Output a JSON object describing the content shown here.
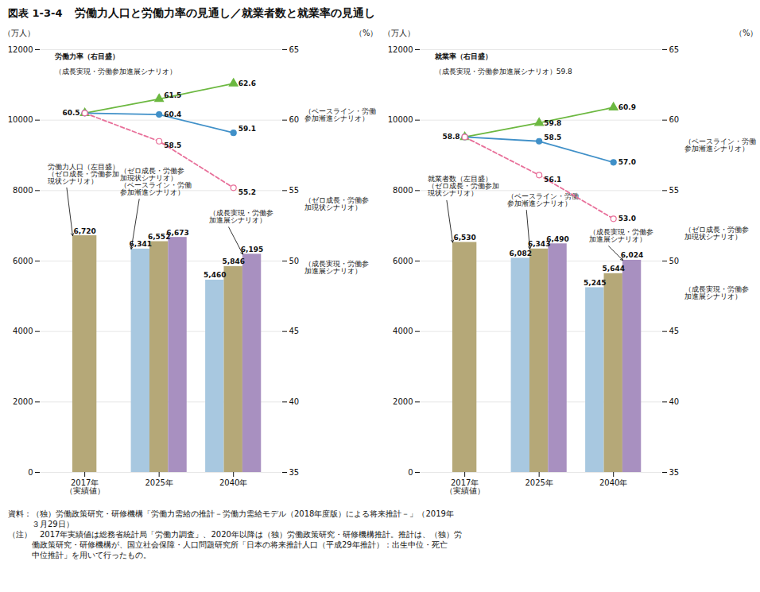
{
  "title": "図表 1-3-4",
  "subtitle": "労働力人口と労働力率の見通し／就業者数と就業率の見通し",
  "caption": [
    "資料：（独）労働政策研究・研修機構「労働力需給の推計－労働力需給モデル（2018年度版）による将来推計－」（2019年",
    "　　　３月29日）",
    "（注）　2017年実績値は総務省統計局「労働力調査」、2020年以降は（独）労働政策研究・研修機構推計。推計は、（独）労",
    "　　　働政策研究・研修機構が、国立社会保障・人口問題研究所「日本の将来推計人口（平成29年推計）：出生中位・死亡",
    "　　　中位推計」を用いて行ったもの。"
  ],
  "chart_data": [
    {
      "type": "bar",
      "categories": [
        "2017年\n（実績値）",
        "2025年",
        "2040年"
      ],
      "ylabel": "（万人）",
      "y2label": "（%）",
      "ylim": [
        0,
        12000
      ],
      "yticks": [
        0,
        2000,
        4000,
        6000,
        8000,
        10000,
        12000
      ],
      "y2lim": [
        35,
        65
      ],
      "y2ticks": [
        35,
        40,
        45,
        50,
        55,
        60,
        65
      ],
      "grid": true,
      "data_labels": true,
      "series": [
        {
          "type": "bar",
          "color": "#a8c8e0",
          "values": [
            null,
            6341,
            5460
          ],
          "value_labels": [
            null,
            "6,341",
            "5,460"
          ]
        },
        {
          "type": "bar",
          "color": "#b5a878",
          "values": [
            6720,
            6552,
            5846
          ],
          "value_labels": [
            "6,720",
            "6,552",
            "5,846"
          ]
        },
        {
          "type": "bar",
          "color": "#a890c0",
          "values": [
            null,
            6673,
            6195
          ],
          "value_labels": [
            null,
            "6,673",
            "6,195"
          ]
        },
        {
          "type": "line",
          "axis": "y2",
          "color": "#6cb840",
          "marker": "triangle",
          "line_style": "solid",
          "values": [
            60.5,
            61.5,
            62.6
          ],
          "value_labels": [
            "60.5",
            "61.5",
            "62.6"
          ]
        },
        {
          "type": "line",
          "axis": "y2",
          "color": "#4090c8",
          "marker": "circle",
          "line_style": "solid",
          "values": [
            60.5,
            60.4,
            59.1
          ],
          "value_labels": [
            null,
            "60.4",
            "59.1"
          ]
        },
        {
          "type": "line",
          "axis": "y2",
          "color": "#e8709a",
          "marker": "hollow_circle",
          "line_style": "dashed",
          "values": [
            60.5,
            58.5,
            55.2
          ],
          "value_labels": [
            null,
            "58.5",
            "55.2"
          ]
        }
      ],
      "annotations": [
        "労働力率（右目盛）",
        "（成長実現・労働参加進展シナリオ）",
        "労働力人口（左目盛）\n（ゼロ成長・労働参加\n現状シナリオ）",
        "（ゼロ成長・労働参\n加現状シナリオ）\n（ベースライン・労働\n参加漸進シナリオ）",
        "（成長実現・労働参\n加進展シナリオ）",
        "（ベースライン・労働\n参加漸進シナリオ）",
        "（ゼロ成長・労働参\n加現状シナリオ）",
        "（成長実現・労働参\n加進展シナリオ）"
      ]
    },
    {
      "type": "bar",
      "categories": [
        "2017年\n（実績値）",
        "2025年",
        "2040年"
      ],
      "ylabel": "（万人）",
      "y2label": "（%）",
      "ylim": [
        0,
        12000
      ],
      "yticks": [
        0,
        2000,
        4000,
        6000,
        8000,
        10000,
        12000
      ],
      "y2lim": [
        35,
        65
      ],
      "y2ticks": [
        35,
        40,
        45,
        50,
        55,
        60,
        65
      ],
      "grid": true,
      "data_labels": true,
      "series": [
        {
          "type": "bar",
          "color": "#a8c8e0",
          "values": [
            null,
            6082,
            5245
          ],
          "value_labels": [
            null,
            "6,082",
            "5,245"
          ]
        },
        {
          "type": "bar",
          "color": "#b5a878",
          "values": [
            6530,
            6343,
            5644
          ],
          "value_labels": [
            "6,530",
            "6,343",
            "5,644"
          ]
        },
        {
          "type": "bar",
          "color": "#a890c0",
          "values": [
            null,
            6490,
            6024
          ],
          "value_labels": [
            null,
            "6,490",
            "6,024"
          ]
        },
        {
          "type": "line",
          "axis": "y2",
          "color": "#6cb840",
          "marker": "triangle",
          "line_style": "solid",
          "values": [
            58.8,
            59.8,
            60.9
          ],
          "value_labels": [
            "58.8",
            "59.8",
            "60.9"
          ]
        },
        {
          "type": "line",
          "axis": "y2",
          "color": "#4090c8",
          "marker": "circle",
          "line_style": "solid",
          "values": [
            58.8,
            58.5,
            57.0
          ],
          "value_labels": [
            null,
            "58.5",
            "57.0"
          ]
        },
        {
          "type": "line",
          "axis": "y2",
          "color": "#e8709a",
          "marker": "hollow_circle",
          "line_style": "dashed",
          "values": [
            58.8,
            56.1,
            53.0
          ],
          "value_labels": [
            null,
            "56.1",
            "53.0"
          ]
        }
      ],
      "annotations": [
        "就業率（右目盛）",
        "（成長実現・労働参加進展シナリオ）59.8",
        "就業者数（左目盛）\n（ゼロ成長・労働参加\n現状シナリオ）",
        "（ベースライン・労働\n参加漸進シナリオ）",
        "（成長実現・労働参\n加進展シナリオ）",
        "（ベースライン・労働\n参加漸進シナリオ）",
        "（ゼロ成長・労働参\n加現状シナリオ）",
        "（成長実現・労働参\n加進展シナリオ）"
      ]
    }
  ]
}
